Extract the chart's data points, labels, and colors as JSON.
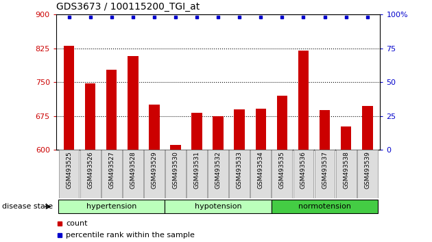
{
  "title": "GDS3673 / 100115200_TGI_at",
  "categories": [
    "GSM493525",
    "GSM493526",
    "GSM493527",
    "GSM493528",
    "GSM493529",
    "GSM493530",
    "GSM493531",
    "GSM493532",
    "GSM493533",
    "GSM493534",
    "GSM493535",
    "GSM493536",
    "GSM493537",
    "GSM493538",
    "GSM493539"
  ],
  "bar_values": [
    830,
    747,
    778,
    808,
    700,
    612,
    682,
    675,
    690,
    692,
    720,
    820,
    688,
    652,
    698
  ],
  "percentile_values": [
    98,
    98,
    98,
    98,
    98,
    98,
    98,
    98,
    98,
    98,
    98,
    98,
    98,
    98,
    98
  ],
  "bar_color": "#cc0000",
  "percentile_color": "#0000cc",
  "ylim_left": [
    600,
    900
  ],
  "ylim_right": [
    0,
    100
  ],
  "yticks_left": [
    600,
    675,
    750,
    825,
    900
  ],
  "yticks_right": [
    0,
    25,
    50,
    75,
    100
  ],
  "grid_values": [
    675,
    750,
    825
  ],
  "groups_info": [
    [
      "hypertension",
      0,
      5,
      "#bbffbb"
    ],
    [
      "hypotension",
      5,
      10,
      "#bbffbb"
    ],
    [
      "normotension",
      10,
      15,
      "#44cc44"
    ]
  ],
  "disease_state_label": "disease state",
  "legend_count_label": "count",
  "legend_percentile_label": "percentile rank within the sample"
}
